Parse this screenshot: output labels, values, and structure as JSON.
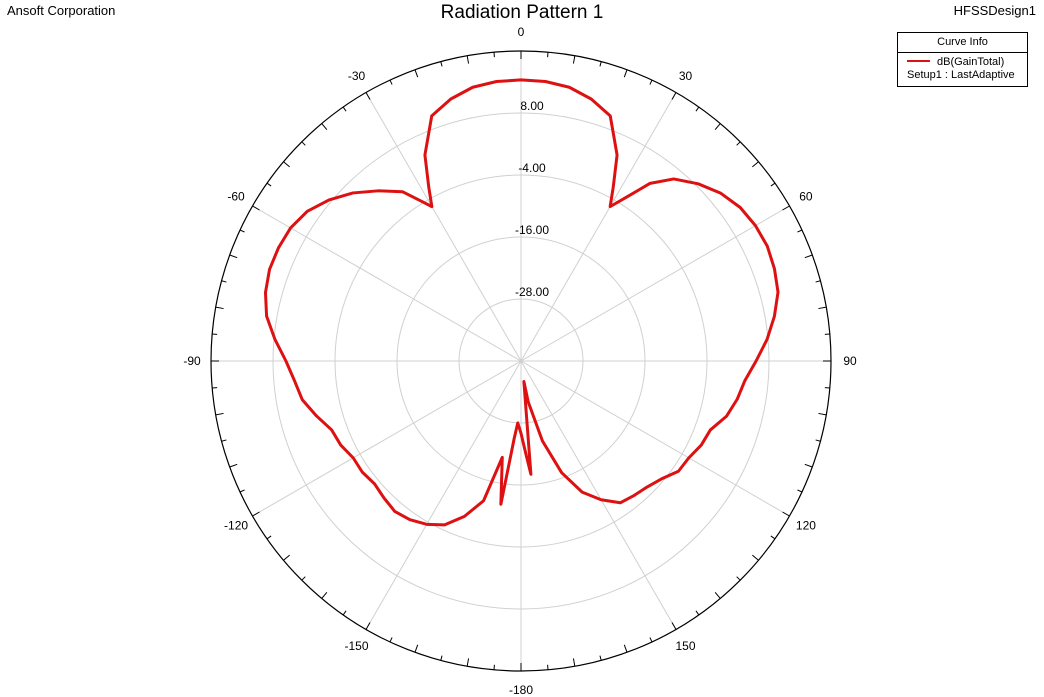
{
  "header": {
    "company": "Ansoft Corporation",
    "title": "Radiation Pattern 1",
    "design": "HFSSDesign1"
  },
  "legend": {
    "title": "Curve Info",
    "series_name": "dB(GainTotal)",
    "setup": "Setup1 : LastAdaptive"
  },
  "colors": {
    "curve": "#dd1111",
    "grid": "#d0d0d0",
    "outline": "#000000"
  },
  "chart_data": {
    "type": "polar-line",
    "title": "Radiation Pattern 1",
    "angle_unit": "deg",
    "angle_zero": "top",
    "angle_direction": "clockwise",
    "angle_ticks": [
      0,
      30,
      60,
      90,
      120,
      150,
      -180,
      -150,
      -120,
      -90,
      -60,
      -30
    ],
    "radial_range": [
      -40,
      20
    ],
    "radial_ticks": [
      8,
      -4,
      -16,
      -28
    ],
    "radial_tick_labels": [
      "8.00",
      "-4.00",
      "-16.00",
      "-28.00"
    ],
    "grid": true,
    "legend_position": "top-right",
    "series": [
      {
        "name": "dB(GainTotal)",
        "color": "#dd1111",
        "points": [
          [
            0,
            14.4
          ],
          [
            5,
            14.3
          ],
          [
            10,
            13.8
          ],
          [
            15,
            12.5
          ],
          [
            20,
            10.5
          ],
          [
            25,
            4.0
          ],
          [
            28,
            -2.0
          ],
          [
            30,
            -5.5
          ],
          [
            33,
            -2.0
          ],
          [
            36,
            2.5
          ],
          [
            40,
            6.0
          ],
          [
            45,
            8.5
          ],
          [
            50,
            10.5
          ],
          [
            55,
            11.8
          ],
          [
            60,
            12.4
          ],
          [
            65,
            12.6
          ],
          [
            70,
            12.2
          ],
          [
            75,
            11.5
          ],
          [
            80,
            9.8
          ],
          [
            85,
            7.8
          ],
          [
            90,
            5.5
          ],
          [
            95,
            3.5
          ],
          [
            100,
            2.5
          ],
          [
            105,
            1.2
          ],
          [
            110,
            -1.0
          ],
          [
            115,
            -1.5
          ],
          [
            120,
            -2.5
          ],
          [
            125,
            -2.8
          ],
          [
            130,
            -4.5
          ],
          [
            135,
            -5.5
          ],
          [
            140,
            -6.0
          ],
          [
            145,
            -6.5
          ],
          [
            150,
            -9.0
          ],
          [
            155,
            -12.0
          ],
          [
            160,
            -17.0
          ],
          [
            165,
            -24.0
          ],
          [
            170,
            -32.0
          ],
          [
            172,
            -36.0
          ],
          [
            175,
            -18.0
          ],
          [
            177,
            -22.0
          ],
          [
            180,
            -26.0
          ],
          [
            183,
            -28.0
          ],
          [
            185,
            -25.0
          ],
          [
            188,
            -12.0
          ],
          [
            191,
            -21.0
          ],
          [
            195,
            -12.0
          ],
          [
            200,
            -8.0
          ],
          [
            205,
            -5.0
          ],
          [
            210,
            -3.5
          ],
          [
            215,
            -2.5
          ],
          [
            220,
            -2.0
          ],
          [
            225,
            -2.5
          ],
          [
            230,
            -3.0
          ],
          [
            235,
            -2.5
          ],
          [
            240,
            -2.5
          ],
          [
            245,
            -1.5
          ],
          [
            250,
            -1.0
          ],
          [
            255,
            1.0
          ],
          [
            260,
            3.0
          ],
          [
            265,
            4.0
          ],
          [
            270,
            5.5
          ],
          [
            275,
            7.8
          ],
          [
            280,
            10.0
          ],
          [
            285,
            11.2
          ],
          [
            290,
            11.8
          ],
          [
            295,
            11.8
          ],
          [
            300,
            11.5
          ],
          [
            305,
            10.5
          ],
          [
            310,
            8.5
          ],
          [
            315,
            6.0
          ],
          [
            320,
            3.0
          ],
          [
            325,
            0.0
          ],
          [
            328,
            -3.5
          ],
          [
            330,
            -5.5
          ],
          [
            332,
            -2.0
          ],
          [
            335,
            4.0
          ],
          [
            340,
            10.5
          ],
          [
            345,
            12.5
          ],
          [
            350,
            13.8
          ],
          [
            355,
            14.3
          ],
          [
            360,
            14.4
          ]
        ]
      }
    ]
  }
}
